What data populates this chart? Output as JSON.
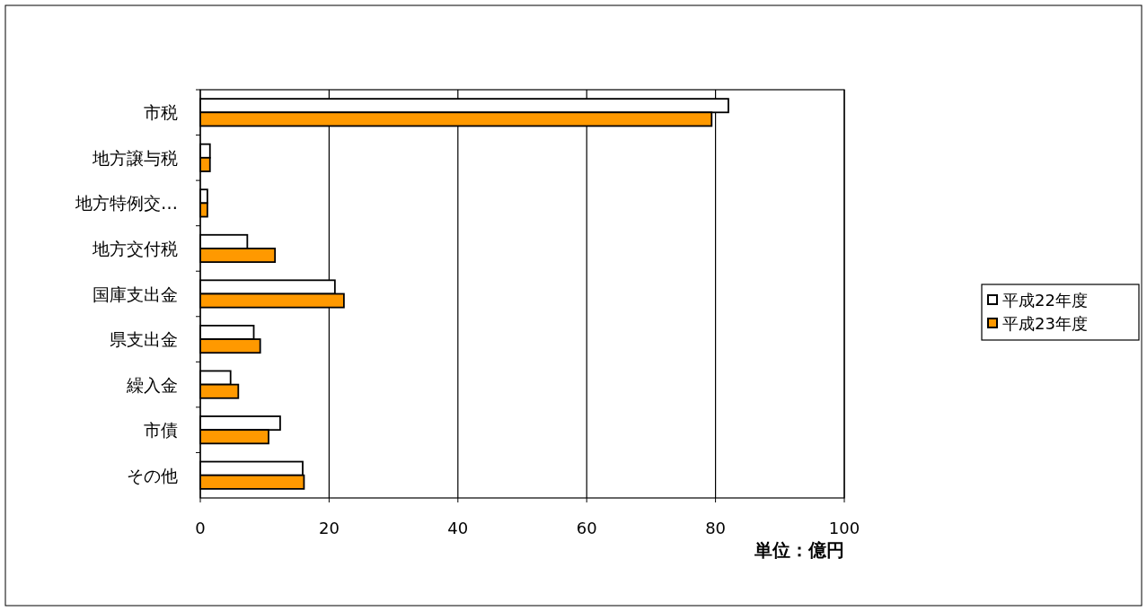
{
  "chart_data": {
    "type": "bar",
    "orientation": "horizontal",
    "categories": [
      "市税",
      "地方譲与税",
      "地方特例交…",
      "地方交付税",
      "国庫支出金",
      "県支出金",
      "繰入金",
      "市債",
      "その他"
    ],
    "series": [
      {
        "name": "平成22年度",
        "color": "#ffffff",
        "values": [
          82,
          1.5,
          1.1,
          7.3,
          20.9,
          8.3,
          4.7,
          12.4,
          15.9
        ]
      },
      {
        "name": "平成23年度",
        "color": "#ff9900",
        "values": [
          79.4,
          1.5,
          1.1,
          11.6,
          22.3,
          9.3,
          5.9,
          10.6,
          16.1
        ]
      }
    ],
    "xlim": [
      0,
      100
    ],
    "xticks": [
      0,
      20,
      40,
      60,
      80,
      100
    ],
    "grid": "x",
    "legend": "right",
    "annotations": [
      "単位：億円"
    ]
  }
}
